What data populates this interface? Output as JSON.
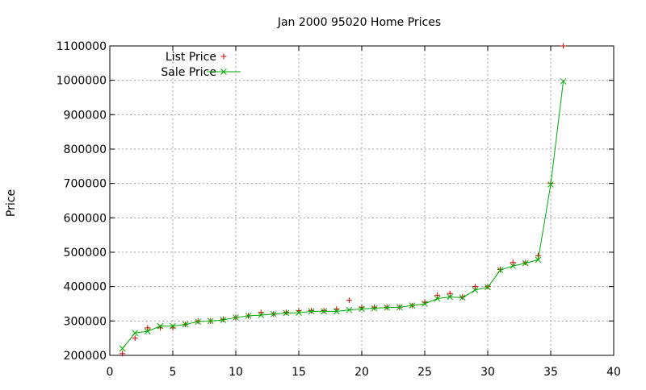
{
  "chart_data": {
    "type": "line",
    "title": "Jan 2000 95020 Home Prices",
    "xlabel": "",
    "ylabel": "Price",
    "xlim": [
      0,
      40
    ],
    "ylim": [
      200000,
      1100000
    ],
    "xticks": [
      0,
      5,
      10,
      15,
      20,
      25,
      30,
      35,
      40
    ],
    "yticks": [
      200000,
      300000,
      400000,
      500000,
      600000,
      700000,
      800000,
      900000,
      1000000,
      1100000
    ],
    "grid": true,
    "legend_position": "top-left",
    "x": [
      1,
      2,
      3,
      4,
      5,
      6,
      7,
      8,
      9,
      10,
      11,
      12,
      13,
      14,
      15,
      16,
      17,
      18,
      19,
      20,
      21,
      22,
      23,
      24,
      25,
      26,
      27,
      28,
      29,
      30,
      31,
      32,
      33,
      34,
      35,
      36
    ],
    "series": [
      {
        "name": "List Price",
        "style": "points",
        "marker": "+",
        "color": "#cc0000",
        "values": [
          205000,
          250000,
          280000,
          280000,
          280000,
          290000,
          300000,
          300000,
          305000,
          310000,
          315000,
          325000,
          320000,
          325000,
          330000,
          330000,
          330000,
          335000,
          360000,
          340000,
          340000,
          340000,
          340000,
          345000,
          355000,
          375000,
          380000,
          370000,
          400000,
          400000,
          450000,
          470000,
          470000,
          490000,
          700000,
          1100000
        ]
      },
      {
        "name": "Sale Price",
        "style": "linespoints",
        "marker": "x",
        "color": "#00aa00",
        "values": [
          220000,
          265000,
          270000,
          285000,
          285000,
          290000,
          298000,
          300000,
          303000,
          310000,
          315000,
          317000,
          320000,
          323000,
          324000,
          328000,
          328000,
          328000,
          332000,
          335000,
          337000,
          339000,
          340000,
          345000,
          350000,
          365000,
          370000,
          368000,
          390000,
          398000,
          448000,
          460000,
          468000,
          478000,
          697000,
          997000
        ]
      }
    ]
  }
}
